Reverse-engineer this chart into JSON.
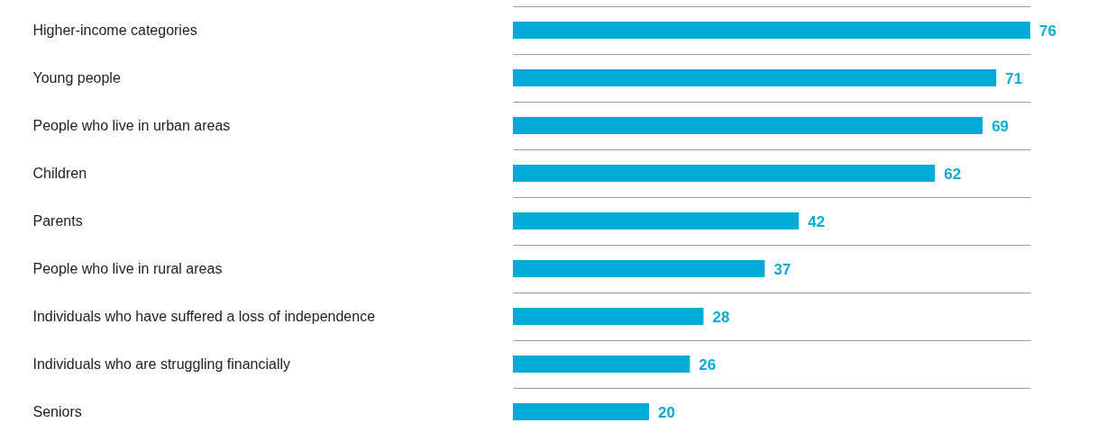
{
  "chart_data": {
    "type": "bar",
    "orientation": "horizontal",
    "categories": [
      "Higher-income categories",
      "Young people",
      "People who live in urban areas",
      "Children",
      "Parents",
      "People who live in rural areas",
      "Individuals who have suffered a loss of independence",
      "Individuals who are struggling financially",
      "Seniors"
    ],
    "values": [
      76,
      71,
      69,
      62,
      42,
      37,
      28,
      26,
      20
    ],
    "color": "#00acd7",
    "data_labels": true,
    "grid": "y"
  }
}
